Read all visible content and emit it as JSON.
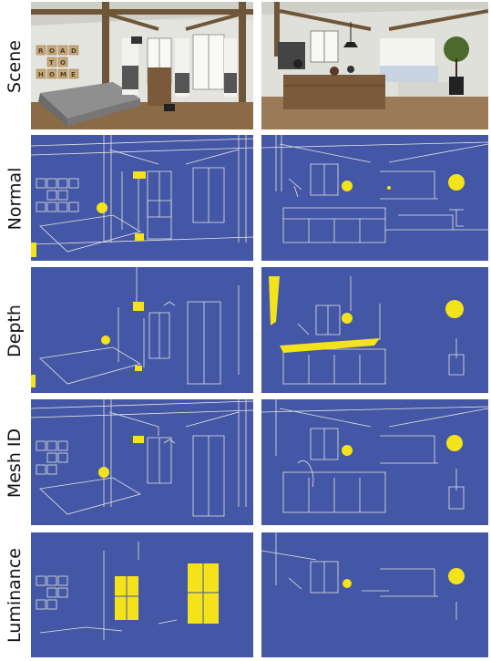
{
  "rows": [
    {
      "label": "Scene"
    },
    {
      "label": "Normal"
    },
    {
      "label": "Depth"
    },
    {
      "label": "Mesh ID"
    },
    {
      "label": "Luminance"
    }
  ],
  "scene_left_wall_letters": "ROAD TO HOME",
  "colors": {
    "map_background": "#4456A6",
    "edge_lines": "#E6E6DE",
    "highlight": "#F4E21A"
  }
}
